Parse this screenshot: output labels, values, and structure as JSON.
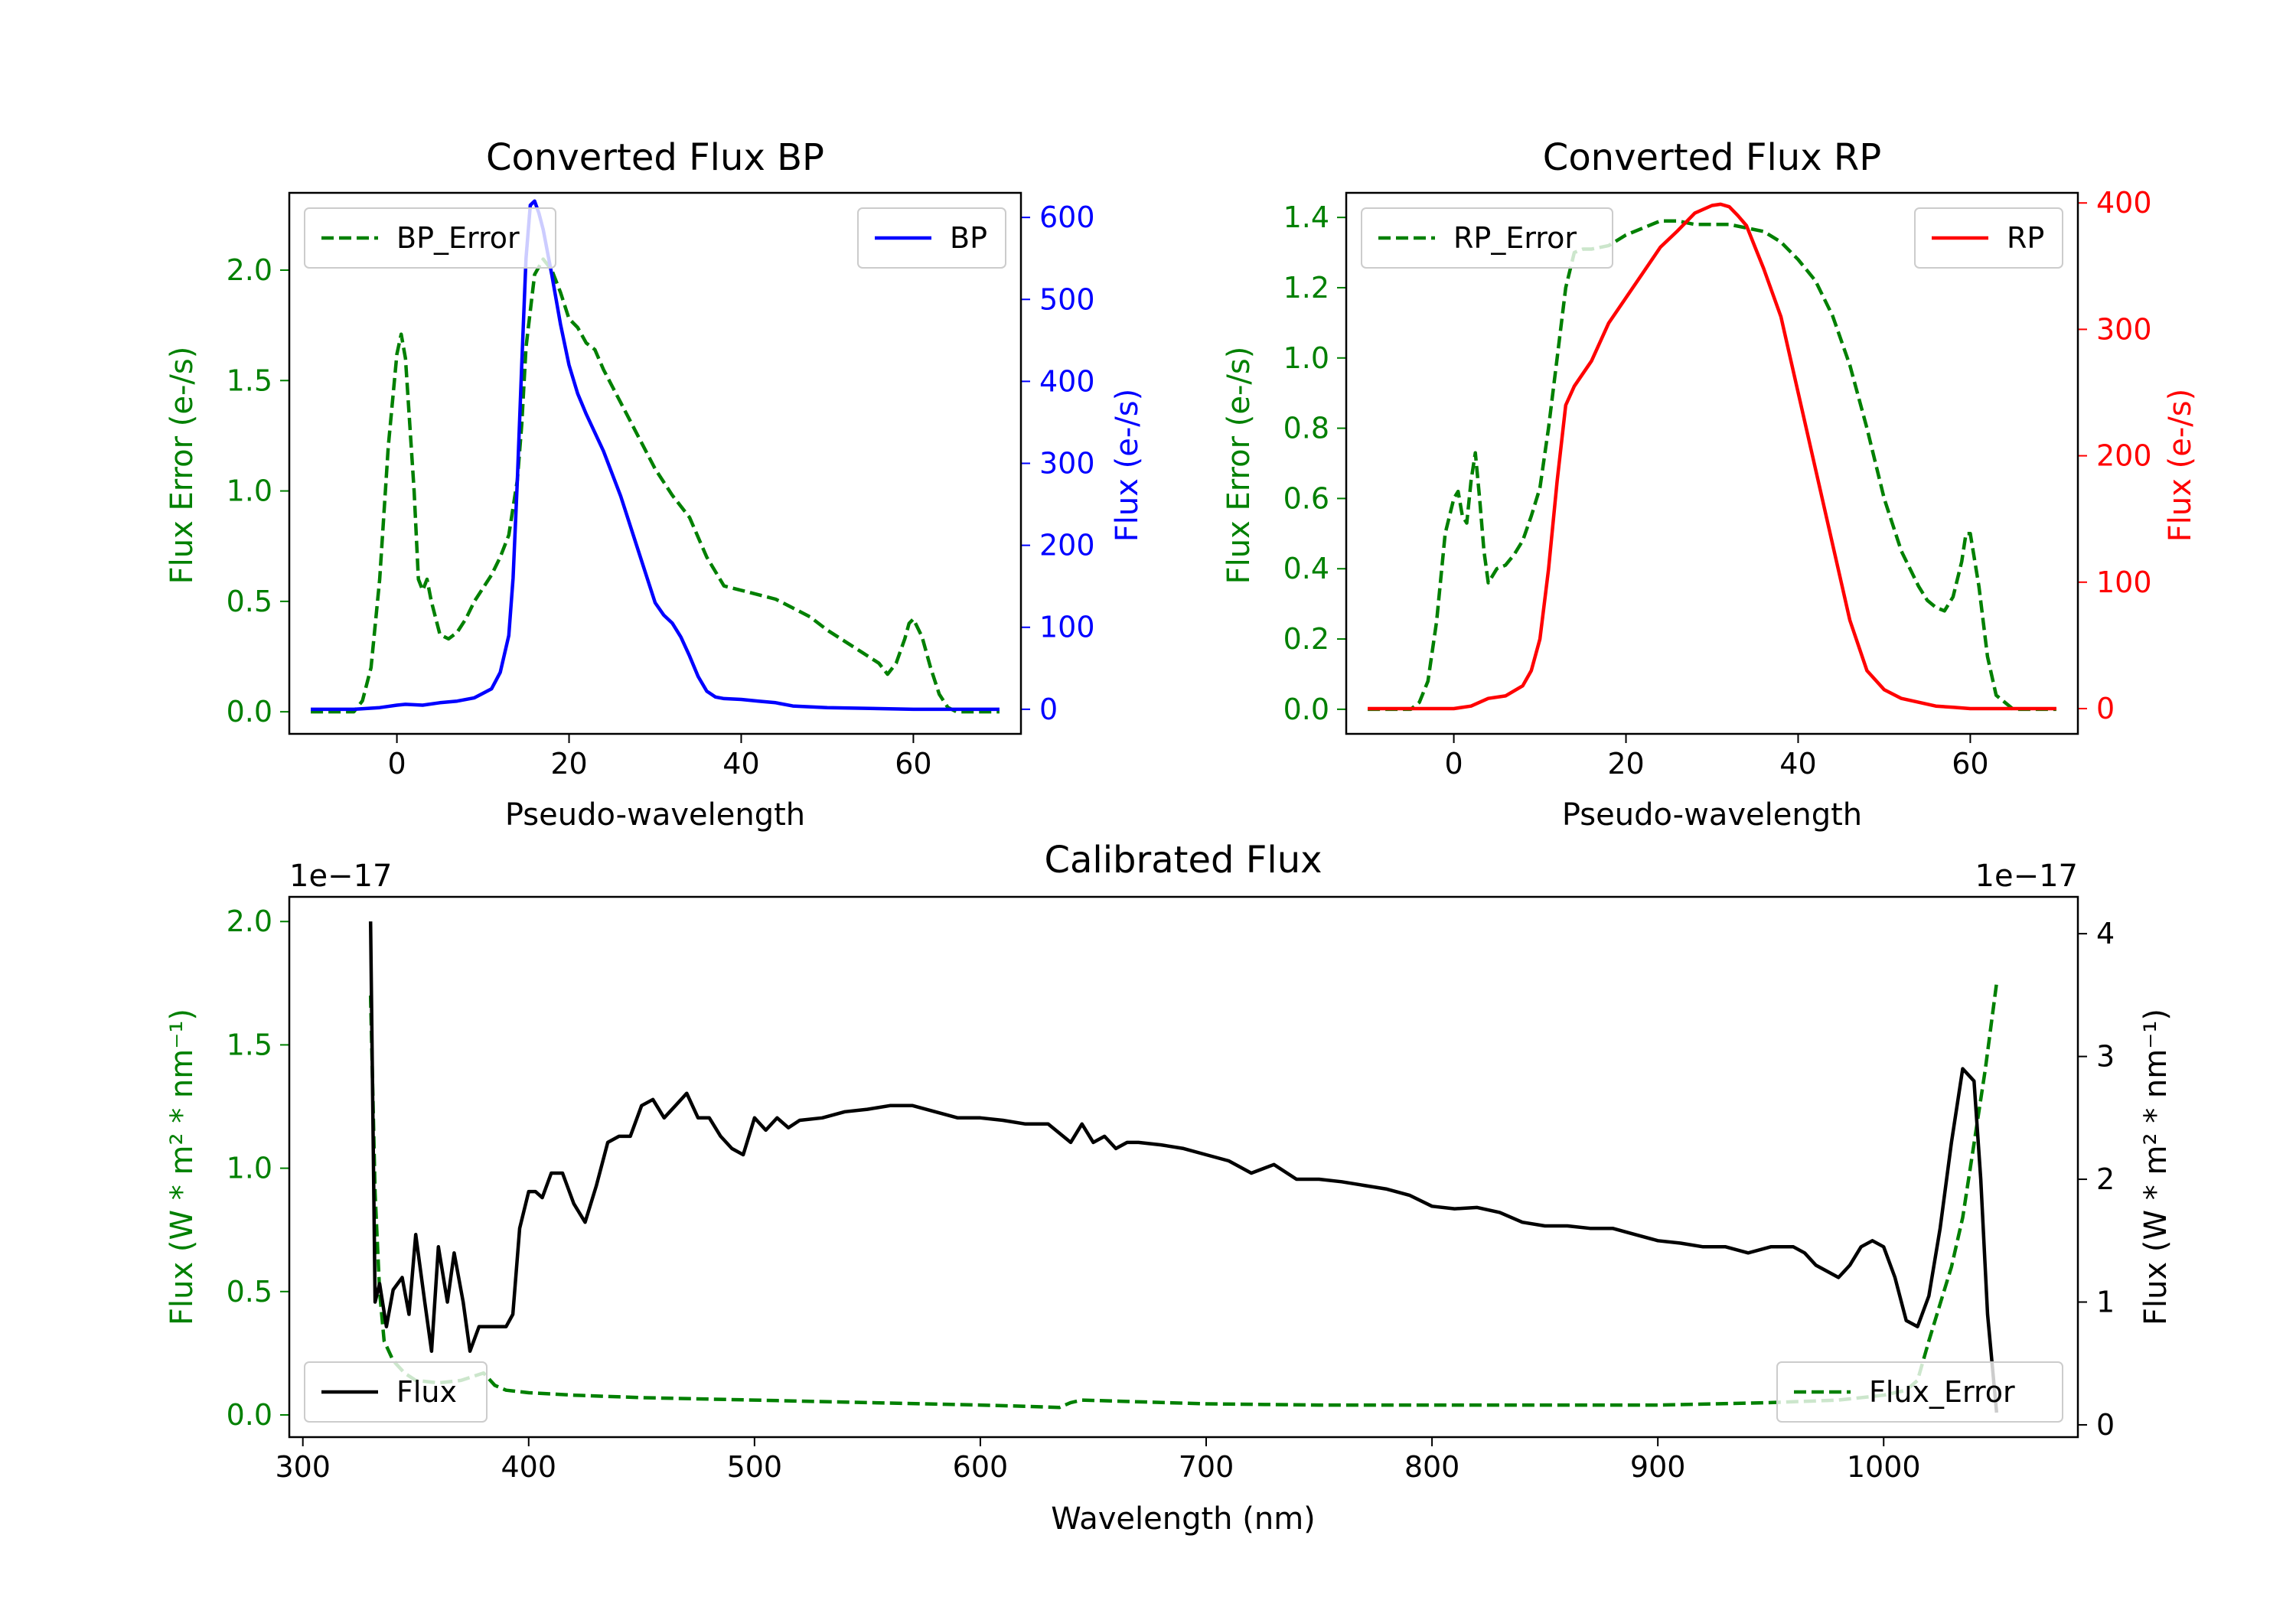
{
  "colors": {
    "green": "#008000",
    "blue": "#0000ff",
    "red": "#ff0000",
    "black": "#000000"
  },
  "chart_data": [
    {
      "id": "bp",
      "type": "line",
      "title": "Converted Flux BP",
      "xlabel": "Pseudo-wavelength",
      "ylabel_left": "Flux Error (e-/s)",
      "ylabel_right": "Flux (e-/s)",
      "xlim": [
        -12.5,
        72.5
      ],
      "ylim_left": [
        -0.1,
        2.35
      ],
      "ylim_right": [
        -30,
        630
      ],
      "xticks": [
        0,
        20,
        40,
        60
      ],
      "yticks_left": [
        0.0,
        0.5,
        1.0,
        1.5,
        2.0
      ],
      "yticks_right": [
        0,
        100,
        200,
        300,
        400,
        500,
        600
      ],
      "legends": [
        {
          "label": "BP_Error",
          "placement": "upper-left",
          "style": "dashed",
          "color": "green"
        },
        {
          "label": "BP",
          "placement": "upper-right",
          "style": "solid",
          "color": "blue"
        }
      ],
      "series": [
        {
          "name": "BP_Error",
          "axis": "left",
          "style": "dashed",
          "color": "green",
          "x": [
            -10,
            -5,
            -4,
            -3,
            -2,
            -1,
            0,
            0.5,
            1,
            2,
            2.5,
            3,
            3.5,
            4,
            5,
            6,
            7,
            8,
            9,
            10,
            11,
            12,
            13,
            14,
            14.5,
            15,
            16,
            17,
            18,
            19,
            20,
            21,
            22,
            23,
            24,
            26,
            28,
            30,
            32,
            34,
            36,
            38,
            40,
            42,
            44,
            46,
            48,
            50,
            52,
            54,
            56,
            57,
            58,
            59,
            59.5,
            60,
            61,
            62,
            63,
            64,
            65,
            68,
            70
          ],
          "y": [
            0.0,
            0.0,
            0.05,
            0.2,
            0.6,
            1.2,
            1.62,
            1.71,
            1.6,
            1.0,
            0.6,
            0.55,
            0.6,
            0.5,
            0.35,
            0.33,
            0.36,
            0.42,
            0.5,
            0.56,
            0.62,
            0.7,
            0.8,
            1.05,
            1.3,
            1.65,
            1.98,
            2.05,
            2.0,
            1.9,
            1.78,
            1.74,
            1.67,
            1.64,
            1.55,
            1.4,
            1.25,
            1.1,
            0.98,
            0.88,
            0.7,
            0.57,
            0.55,
            0.53,
            0.51,
            0.47,
            0.43,
            0.37,
            0.32,
            0.27,
            0.22,
            0.17,
            0.22,
            0.33,
            0.4,
            0.42,
            0.34,
            0.2,
            0.08,
            0.02,
            0.0,
            0.0,
            0.0
          ]
        },
        {
          "name": "BP",
          "axis": "right",
          "style": "solid",
          "color": "blue",
          "x": [
            -10,
            -5,
            -2,
            0,
            1,
            3,
            5,
            7,
            9,
            11,
            12,
            13,
            13.5,
            14,
            14.5,
            15,
            15.5,
            16,
            16.5,
            17,
            18,
            19,
            20,
            21,
            22,
            24,
            26,
            28,
            30,
            31,
            32,
            33,
            34,
            35,
            36,
            37,
            38,
            40,
            42,
            44,
            46,
            50,
            55,
            60,
            65,
            70
          ],
          "y": [
            0,
            0,
            2,
            5,
            6,
            5,
            8,
            10,
            14,
            25,
            45,
            90,
            160,
            280,
            420,
            550,
            615,
            620,
            605,
            585,
            530,
            470,
            420,
            385,
            360,
            315,
            260,
            195,
            130,
            115,
            105,
            88,
            65,
            40,
            22,
            15,
            13,
            12,
            10,
            8,
            4,
            2,
            1,
            0,
            0,
            0
          ]
        }
      ]
    },
    {
      "id": "rp",
      "type": "line",
      "title": "Converted Flux RP",
      "xlabel": "Pseudo-wavelength",
      "ylabel_left": "Flux Error (e-/s)",
      "ylabel_right": "Flux (e-/s)",
      "xlim": [
        -12.5,
        72.5
      ],
      "ylim_left": [
        -0.07,
        1.47
      ],
      "ylim_right": [
        -20,
        408
      ],
      "xticks": [
        0,
        20,
        40,
        60
      ],
      "yticks_left": [
        0.0,
        0.2,
        0.4,
        0.6,
        0.8,
        1.0,
        1.2,
        1.4
      ],
      "yticks_right": [
        0,
        100,
        200,
        300,
        400
      ],
      "legends": [
        {
          "label": "RP_Error",
          "placement": "upper-left",
          "style": "dashed",
          "color": "green"
        },
        {
          "label": "RP",
          "placement": "upper-right",
          "style": "solid",
          "color": "red"
        }
      ],
      "series": [
        {
          "name": "RP_Error",
          "axis": "left",
          "style": "dashed",
          "color": "green",
          "x": [
            -10,
            -5,
            -4,
            -3,
            -2,
            -1,
            0,
            0.5,
            1,
            1.5,
            2,
            2.5,
            3,
            3.5,
            4,
            5,
            6,
            7,
            8,
            9,
            10,
            11,
            12,
            13,
            14,
            15,
            16,
            18,
            20,
            22,
            24,
            26,
            28,
            30,
            32,
            34,
            36,
            38,
            40,
            42,
            44,
            46,
            48,
            50,
            52,
            54,
            55,
            56,
            57,
            58,
            59,
            59.5,
            60,
            61,
            62,
            63,
            65,
            70
          ],
          "y": [
            0.0,
            0.0,
            0.02,
            0.08,
            0.25,
            0.5,
            0.6,
            0.62,
            0.55,
            0.53,
            0.65,
            0.73,
            0.6,
            0.45,
            0.36,
            0.4,
            0.41,
            0.44,
            0.48,
            0.55,
            0.63,
            0.8,
            1.0,
            1.2,
            1.3,
            1.31,
            1.31,
            1.32,
            1.35,
            1.37,
            1.39,
            1.39,
            1.38,
            1.38,
            1.38,
            1.37,
            1.36,
            1.33,
            1.28,
            1.22,
            1.12,
            0.98,
            0.8,
            0.6,
            0.45,
            0.35,
            0.31,
            0.29,
            0.28,
            0.32,
            0.42,
            0.5,
            0.5,
            0.35,
            0.15,
            0.04,
            0.0,
            0.0
          ]
        },
        {
          "name": "RP",
          "axis": "right",
          "style": "solid",
          "color": "red",
          "x": [
            -10,
            -5,
            0,
            2,
            4,
            6,
            8,
            9,
            10,
            11,
            12,
            13,
            14,
            16,
            18,
            20,
            22,
            24,
            26,
            28,
            30,
            31,
            32,
            33,
            34,
            35,
            36,
            38,
            40,
            42,
            44,
            46,
            48,
            50,
            52,
            54,
            56,
            58,
            60,
            65,
            70
          ],
          "y": [
            0,
            0,
            0,
            2,
            8,
            10,
            18,
            30,
            55,
            110,
            180,
            240,
            255,
            275,
            305,
            325,
            345,
            365,
            378,
            392,
            398,
            399,
            397,
            390,
            382,
            365,
            348,
            310,
            250,
            190,
            130,
            70,
            30,
            15,
            8,
            5,
            2,
            1,
            0,
            0,
            0
          ]
        }
      ]
    },
    {
      "id": "calibrated",
      "type": "line",
      "title": "Calibrated Flux",
      "xlabel": "Wavelength (nm)",
      "ylabel_left": "Flux (W * m² * nm⁻¹)",
      "ylabel_right": "Flux (W * m² * nm⁻¹)",
      "offset_left": "1e−17",
      "offset_right": "1e−17",
      "xlim": [
        294,
        1086
      ],
      "ylim_left": [
        -0.09,
        2.1
      ],
      "ylim_right": [
        -0.1,
        4.3
      ],
      "xticks": [
        300,
        400,
        500,
        600,
        700,
        800,
        900,
        1000
      ],
      "yticks_left": [
        0.0,
        0.5,
        1.0,
        1.5,
        2.0
      ],
      "yticks_right": [
        0,
        1,
        2,
        3,
        4
      ],
      "legends": [
        {
          "label": "Flux",
          "placement": "lower-left",
          "style": "solid",
          "color": "black"
        },
        {
          "label": "Flux_Error",
          "placement": "lower-right",
          "style": "dashed",
          "color": "green"
        }
      ],
      "series": [
        {
          "name": "Flux_Error",
          "axis": "left",
          "style": "dashed",
          "color": "green",
          "x": [
            330,
            332,
            334,
            336,
            340,
            345,
            350,
            360,
            370,
            380,
            385,
            390,
            400,
            420,
            450,
            500,
            550,
            600,
            620,
            635,
            640,
            645,
            700,
            750,
            800,
            850,
            900,
            950,
            980,
            1000,
            1010,
            1015,
            1020,
            1025,
            1030,
            1035,
            1040,
            1045,
            1050
          ],
          "y": [
            1.7,
            0.9,
            0.5,
            0.3,
            0.22,
            0.17,
            0.14,
            0.13,
            0.14,
            0.17,
            0.12,
            0.1,
            0.09,
            0.08,
            0.07,
            0.06,
            0.05,
            0.04,
            0.035,
            0.03,
            0.05,
            0.06,
            0.045,
            0.04,
            0.04,
            0.04,
            0.04,
            0.05,
            0.06,
            0.08,
            0.1,
            0.14,
            0.3,
            0.45,
            0.6,
            0.8,
            1.1,
            1.4,
            1.75
          ]
        },
        {
          "name": "Flux",
          "axis": "right",
          "style": "solid",
          "color": "black",
          "x": [
            330,
            332,
            334,
            337,
            340,
            344,
            347,
            350,
            354,
            357,
            360,
            364,
            367,
            371,
            374,
            378,
            381,
            384,
            387,
            390,
            393,
            396,
            400,
            403,
            406,
            410,
            415,
            420,
            425,
            430,
            435,
            440,
            445,
            450,
            455,
            460,
            465,
            470,
            475,
            480,
            485,
            490,
            495,
            500,
            505,
            510,
            515,
            520,
            530,
            540,
            550,
            560,
            570,
            580,
            590,
            600,
            610,
            620,
            630,
            640,
            645,
            650,
            655,
            660,
            665,
            670,
            680,
            690,
            700,
            710,
            720,
            730,
            740,
            750,
            760,
            770,
            780,
            790,
            800,
            810,
            820,
            830,
            840,
            850,
            860,
            870,
            880,
            890,
            900,
            910,
            920,
            930,
            940,
            950,
            960,
            965,
            970,
            975,
            980,
            985,
            990,
            995,
            1000,
            1005,
            1010,
            1015,
            1020,
            1025,
            1030,
            1035,
            1040,
            1043,
            1046,
            1050
          ],
          "y": [
            4.1,
            1.0,
            1.15,
            0.8,
            1.1,
            1.2,
            0.9,
            1.55,
            1.0,
            0.6,
            1.45,
            1.0,
            1.4,
            1.0,
            0.6,
            0.8,
            0.8,
            0.8,
            0.8,
            0.8,
            0.9,
            1.6,
            1.9,
            1.9,
            1.85,
            2.05,
            2.05,
            1.8,
            1.65,
            1.95,
            2.3,
            2.35,
            2.35,
            2.6,
            2.65,
            2.5,
            2.6,
            2.7,
            2.5,
            2.5,
            2.35,
            2.25,
            2.2,
            2.5,
            2.4,
            2.5,
            2.42,
            2.48,
            2.5,
            2.55,
            2.57,
            2.6,
            2.6,
            2.55,
            2.5,
            2.5,
            2.48,
            2.45,
            2.45,
            2.3,
            2.45,
            2.3,
            2.35,
            2.25,
            2.3,
            2.3,
            2.28,
            2.25,
            2.2,
            2.15,
            2.05,
            2.12,
            2.0,
            2.0,
            1.98,
            1.95,
            1.92,
            1.87,
            1.78,
            1.76,
            1.77,
            1.73,
            1.65,
            1.62,
            1.62,
            1.6,
            1.6,
            1.55,
            1.5,
            1.48,
            1.45,
            1.45,
            1.4,
            1.45,
            1.45,
            1.4,
            1.3,
            1.25,
            1.2,
            1.3,
            1.45,
            1.5,
            1.45,
            1.2,
            0.85,
            0.8,
            1.05,
            1.6,
            2.3,
            2.9,
            2.8,
            2.0,
            0.9,
            0.1
          ]
        }
      ]
    }
  ]
}
